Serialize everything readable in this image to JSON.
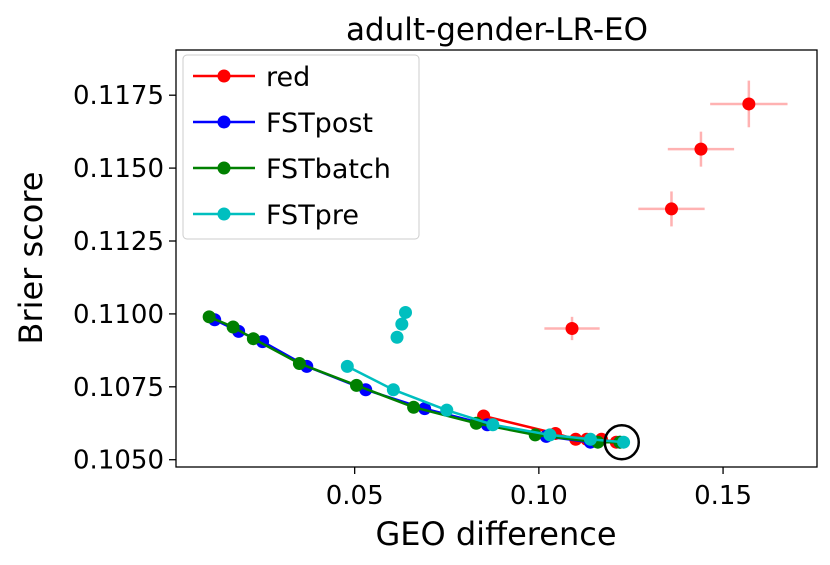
{
  "chart_data": {
    "type": "scatter",
    "title": "adult-gender-LR-EO",
    "xlabel": "GEO difference",
    "ylabel": "Brier score",
    "xlim": [
      0.0015,
      0.1755
    ],
    "ylim": [
      0.10475,
      0.11905
    ],
    "xticks": [
      0.05,
      0.1,
      0.15
    ],
    "xtick_labels": [
      "0.05",
      "0.10",
      "0.15"
    ],
    "yticks": [
      0.105,
      0.1075,
      0.11,
      0.1125,
      0.115,
      0.1175
    ],
    "ytick_labels": [
      "0.1050",
      "0.1075",
      "0.1100",
      "0.1125",
      "0.1150",
      "0.1175"
    ],
    "grid": false,
    "legend_position": "top-left",
    "series": [
      {
        "name": "red",
        "color": "#ff0000",
        "line_points": [
          {
            "x": 0.085,
            "y": 0.1065
          },
          {
            "x": 0.1045,
            "y": 0.1059
          },
          {
            "x": 0.11,
            "y": 0.1057
          },
          {
            "x": 0.113,
            "y": 0.1057
          },
          {
            "x": 0.117,
            "y": 0.1057
          },
          {
            "x": 0.121,
            "y": 0.1056
          }
        ],
        "outlier_points": [
          {
            "x": 0.109,
            "y": 0.1095,
            "xerr": 0.0075,
            "yerr": 0.0004
          },
          {
            "x": 0.136,
            "y": 0.1136,
            "xerr": 0.009,
            "yerr": 0.0006
          },
          {
            "x": 0.144,
            "y": 0.11565,
            "xerr": 0.009,
            "yerr": 0.0006
          },
          {
            "x": 0.157,
            "y": 0.1172,
            "xerr": 0.0105,
            "yerr": 0.0008
          }
        ]
      },
      {
        "name": "FSTpost",
        "color": "#0000ff",
        "line_points": [
          {
            "x": 0.012,
            "y": 0.1098
          },
          {
            "x": 0.0185,
            "y": 0.1094
          },
          {
            "x": 0.025,
            "y": 0.10905
          },
          {
            "x": 0.037,
            "y": 0.1082
          },
          {
            "x": 0.053,
            "y": 0.1074
          },
          {
            "x": 0.069,
            "y": 0.10675
          },
          {
            "x": 0.086,
            "y": 0.1062
          },
          {
            "x": 0.102,
            "y": 0.1058
          },
          {
            "x": 0.114,
            "y": 0.1056
          },
          {
            "x": 0.122,
            "y": 0.1056
          }
        ]
      },
      {
        "name": "FSTbatch",
        "color": "#008000",
        "line_points": [
          {
            "x": 0.0105,
            "y": 0.1099
          },
          {
            "x": 0.017,
            "y": 0.10955
          },
          {
            "x": 0.0225,
            "y": 0.10915
          },
          {
            "x": 0.035,
            "y": 0.1083
          },
          {
            "x": 0.0505,
            "y": 0.10755
          },
          {
            "x": 0.066,
            "y": 0.1068
          },
          {
            "x": 0.083,
            "y": 0.10625
          },
          {
            "x": 0.099,
            "y": 0.10585
          },
          {
            "x": 0.116,
            "y": 0.1056
          },
          {
            "x": 0.122,
            "y": 0.1056
          }
        ]
      },
      {
        "name": "FSTpre",
        "color": "#00bfbf",
        "line_points": [
          {
            "x": 0.048,
            "y": 0.1082
          },
          {
            "x": 0.0605,
            "y": 0.1074
          },
          {
            "x": 0.075,
            "y": 0.1067
          },
          {
            "x": 0.0875,
            "y": 0.1062
          },
          {
            "x": 0.103,
            "y": 0.10585
          },
          {
            "x": 0.114,
            "y": 0.1057
          },
          {
            "x": 0.123,
            "y": 0.1056
          }
        ],
        "outlier_points": [
          {
            "x": 0.0615,
            "y": 0.1092
          },
          {
            "x": 0.0628,
            "y": 0.10965
          },
          {
            "x": 0.0638,
            "y": 0.11005
          }
        ]
      }
    ],
    "annotations": [
      {
        "type": "circle",
        "x": 0.1225,
        "y": 0.1056,
        "label": ""
      }
    ]
  }
}
